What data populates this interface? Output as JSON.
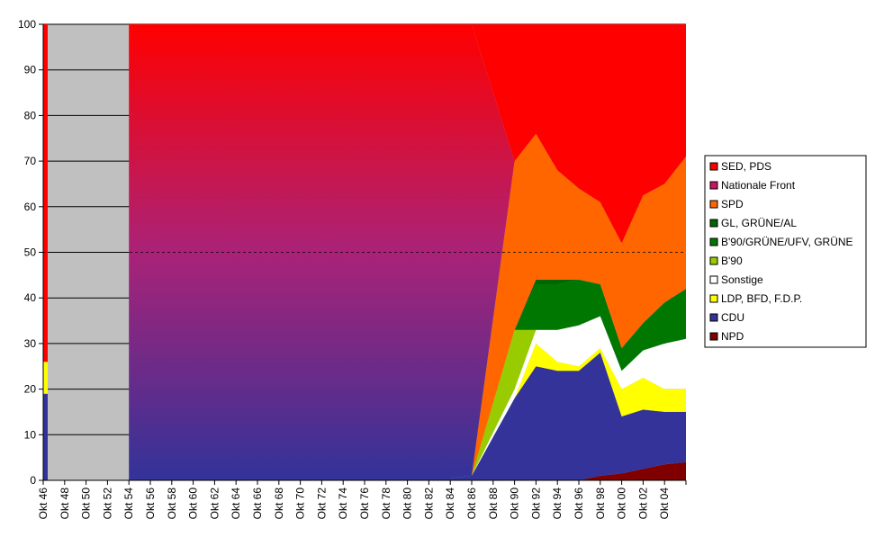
{
  "chart_data": {
    "type": "stacked_area",
    "categories": [
      "Okt 46",
      "Okt 48",
      "Okt 50",
      "Okt 52",
      "Okt 54",
      "Okt 56",
      "Okt 58",
      "Okt 60",
      "Okt 62",
      "Okt 64",
      "Okt 66",
      "Okt 68",
      "Okt 70",
      "Okt 72",
      "Okt 74",
      "Okt 76",
      "Okt 78",
      "Okt 80",
      "Okt 82",
      "Okt 84",
      "Okt 86",
      "Okt 88",
      "Okt 90",
      "Okt 92",
      "Okt 94",
      "Okt 96",
      "Okt 98",
      "Okt 00",
      "Okt 02",
      "Okt 04",
      null
    ],
    "series": [
      {
        "name": "NPD",
        "color": "#800000",
        "values": [
          0,
          null,
          null,
          null,
          0,
          0,
          0,
          0,
          0,
          0,
          0,
          0,
          0,
          0,
          0,
          0,
          0,
          0,
          0,
          0,
          0,
          0,
          0,
          0,
          0,
          0,
          1,
          1.5,
          2.5,
          3.5,
          4
        ]
      },
      {
        "name": "CDU",
        "color": "#333399",
        "values": [
          19,
          null,
          null,
          null,
          0.5,
          0.5,
          0.5,
          0.5,
          0.5,
          0.5,
          0.5,
          0.5,
          0.5,
          0.5,
          0.5,
          0.5,
          0.5,
          0.5,
          0.5,
          0.5,
          1,
          9.5,
          18,
          25,
          24,
          24,
          27,
          12.5,
          13,
          11.5,
          11
        ]
      },
      {
        "name": "LDP, BFD, F.D.P.",
        "color": "#ffff00",
        "values": [
          7,
          null,
          null,
          null,
          0,
          0,
          0,
          0,
          0,
          0,
          0,
          0,
          0,
          0,
          0,
          0,
          0,
          0,
          0,
          0,
          0,
          0,
          0,
          5,
          2,
          1,
          1,
          6,
          7,
          5,
          5
        ]
      },
      {
        "name": "Sonstige",
        "color": "#ffffff",
        "values": [
          0,
          null,
          null,
          null,
          0,
          0,
          0,
          0,
          0,
          0,
          0,
          0,
          0,
          0,
          0,
          0,
          0,
          0,
          0,
          0,
          0,
          1,
          2,
          3,
          7,
          9,
          7,
          4,
          6,
          10,
          11
        ]
      },
      {
        "name": "B'90",
        "color": "#99cc00",
        "values": [
          0,
          null,
          null,
          null,
          0,
          0,
          0,
          0,
          0,
          0,
          0,
          0,
          0,
          0,
          0,
          0,
          0,
          0,
          0,
          0,
          0,
          6.5,
          13,
          0,
          0,
          0,
          0,
          0,
          0,
          0,
          0
        ]
      },
      {
        "name": "B'90/GRÜNE/UFV, GRÜNE",
        "color": "#007700",
        "values": [
          0,
          null,
          null,
          null,
          0,
          0,
          0,
          0,
          0,
          0,
          0,
          0,
          0,
          0,
          0,
          0,
          0,
          0,
          0,
          0,
          0,
          0,
          0,
          10,
          10,
          10,
          7,
          5,
          6,
          9,
          11
        ]
      },
      {
        "name": "GL, GRÜNE/AL",
        "color": "#006600",
        "values": [
          0,
          null,
          null,
          null,
          0,
          0,
          0,
          0,
          0,
          0,
          0,
          0,
          0,
          0,
          0,
          0,
          0,
          0,
          0,
          0,
          0,
          0,
          0,
          1,
          1,
          0,
          0,
          0,
          0,
          0,
          0
        ]
      },
      {
        "name": "SPD",
        "color": "#ff6600",
        "values": [
          0,
          null,
          null,
          null,
          0,
          0,
          0,
          0,
          0,
          0,
          0,
          0,
          0,
          0,
          0,
          0,
          0,
          0,
          0,
          0,
          0,
          18.5,
          37,
          32,
          24,
          20,
          18,
          23,
          28,
          26,
          29
        ]
      },
      {
        "name": "Nationale Front",
        "color": "#cc1166",
        "values": [
          0,
          null,
          null,
          null,
          99.5,
          99.5,
          99.5,
          99.5,
          99.5,
          99.5,
          99.5,
          99.5,
          99.5,
          99.5,
          99.5,
          99.5,
          99.5,
          99.5,
          99.5,
          99.5,
          99,
          49.5,
          0,
          0,
          0,
          0,
          0,
          0,
          0,
          0,
          0
        ]
      },
      {
        "name": "SED, PDS",
        "color": "#ff0000",
        "values": [
          74,
          null,
          null,
          null,
          0,
          0,
          0,
          0,
          0,
          0,
          0,
          0,
          0,
          0,
          0,
          0,
          0,
          0,
          0,
          0,
          0,
          15,
          30,
          24,
          32,
          36,
          39,
          48,
          37.5,
          35,
          29
        ]
      }
    ],
    "ylim": [
      0,
      100
    ],
    "yticks": [
      0,
      10,
      20,
      30,
      40,
      50,
      60,
      70,
      80,
      90,
      100
    ],
    "grid": true,
    "reference_line": 50,
    "legend": "right"
  }
}
